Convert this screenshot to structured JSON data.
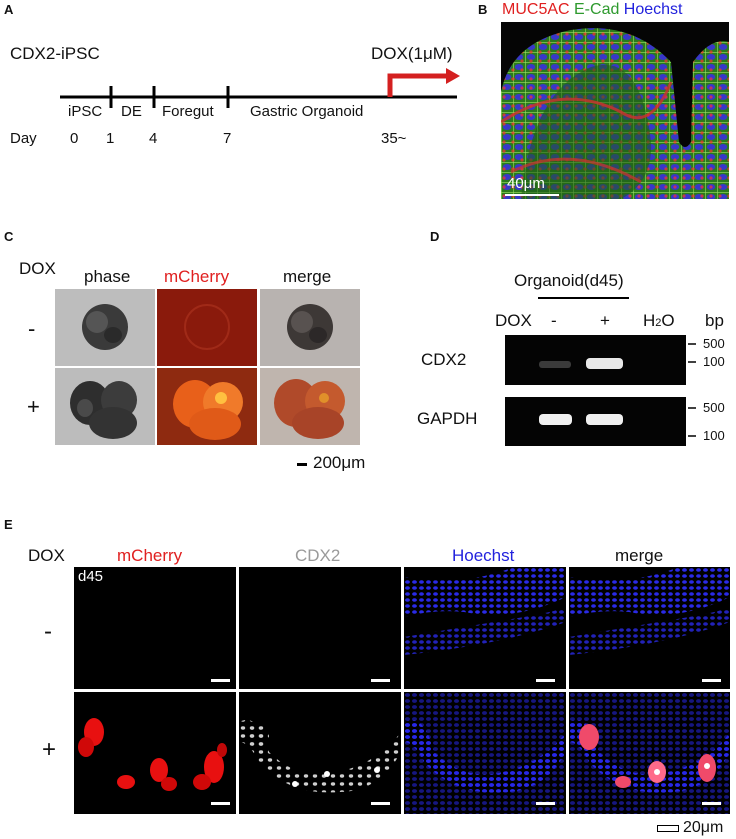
{
  "panels": {
    "A": {
      "label": "A",
      "line_label": "CDX2-iPSC",
      "dox_label": "DOX(1μM)",
      "stages": [
        "iPSC",
        "DE",
        "Foregut",
        "Gastric Organoid"
      ],
      "day_label": "Day",
      "days": [
        "0",
        "1",
        "4",
        "7",
        "35~"
      ]
    },
    "B": {
      "label": "B",
      "title_parts": [
        {
          "text": "MUC5AC",
          "color": "#e02020"
        },
        {
          "text": " E-Cad",
          "color": "#2e9a2e"
        },
        {
          "text": " Hoechst",
          "color": "#2222dd"
        }
      ],
      "scale": "40μm"
    },
    "C": {
      "label": "C",
      "dox_label": "DOX",
      "columns": [
        "phase",
        "mCherry",
        "merge"
      ],
      "rows": [
        "-",
        "+"
      ],
      "scale": "200μm"
    },
    "D": {
      "label": "D",
      "organoid_label": "Organoid(d45)",
      "dox_label": "DOX",
      "lanes": [
        "-",
        "+"
      ],
      "h2o_label": "H",
      "h2o_sub": "2",
      "h2o_tail": "O",
      "bp_label": "bp",
      "genes": [
        "CDX2",
        "GAPDH"
      ],
      "markers": [
        "500",
        "100"
      ]
    },
    "E": {
      "label": "E",
      "dox_label": "DOX",
      "columns": [
        "mCherry",
        "CDX2",
        "Hoechst",
        "merge"
      ],
      "column_colors": [
        "#e02020",
        "#9a9a9a",
        "#2222dd",
        "#111111"
      ],
      "day_tag": "d45",
      "rows": [
        "-",
        "+"
      ],
      "scale": "20μm"
    }
  },
  "colors": {
    "arrow": "#d42020",
    "mcherry": "#e02020",
    "ecad": "#2e9a2e",
    "hoechst": "#2222dd"
  }
}
